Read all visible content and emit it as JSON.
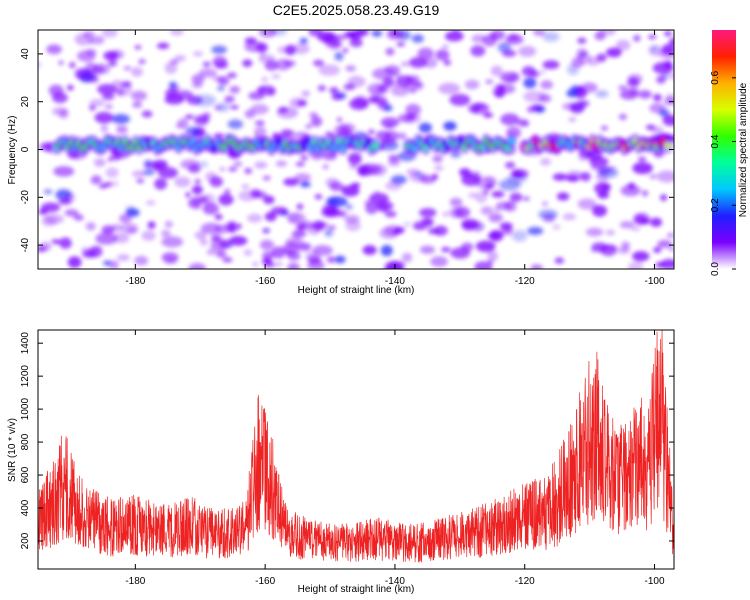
{
  "title": "C2E5.2025.058.23.49.G19",
  "chart_data": [
    {
      "type": "heatmap",
      "xlabel": "Height of straight line (km)",
      "ylabel": "Frequency (Hz)",
      "xlim": [
        -195,
        -97
      ],
      "ylim": [
        -50,
        50
      ],
      "x_ticks": [
        -180,
        -160,
        -140,
        -120,
        -100
      ],
      "y_ticks": [
        -40,
        -20,
        0,
        20,
        40
      ],
      "colorbar": {
        "label": "Normalized spectral amplitude",
        "range": [
          0,
          0.75
        ],
        "ticks": [
          0,
          0.2,
          0.4,
          0.6
        ],
        "tick_labels": [
          "0.0",
          "0.2",
          "0.4",
          "0.6"
        ],
        "colors": [
          "#ffffff",
          "#7b00ff",
          "#1f1fff",
          "#00c8ff",
          "#00ff9a",
          "#30ff00",
          "#d8ff00",
          "#ffb000",
          "#ff2000",
          "#ff1a80"
        ]
      },
      "signal_band": {
        "center_frequency_hz": 2,
        "segments": [
          {
            "x_start": -192,
            "x_end": -143,
            "peak_amplitude": 0.4
          },
          {
            "x_start": -138,
            "x_end": -122,
            "peak_amplitude": 0.45
          },
          {
            "x_start": -120,
            "x_end": -98,
            "peak_amplitude": 0.75
          }
        ]
      }
    },
    {
      "type": "line",
      "xlabel": "Height of straight line (km)",
      "ylabel": "SNR (10 * v/v)",
      "xlim": [
        -195,
        -97
      ],
      "ylim": [
        30,
        1480
      ],
      "x_ticks": [
        -180,
        -160,
        -140,
        -120,
        -100
      ],
      "y_ticks": [
        200,
        400,
        600,
        800,
        1000,
        1200,
        1400
      ],
      "series": [
        {
          "color": "#ee2222",
          "x": [
            -195,
            -193,
            -191,
            -189,
            -187,
            -185,
            -183,
            -181,
            -179,
            -177,
            -175,
            -173,
            -171,
            -169,
            -167,
            -165,
            -163,
            -161,
            -159,
            -157,
            -155,
            -153,
            -151,
            -149,
            -147,
            -145,
            -143,
            -141,
            -139,
            -137,
            -135,
            -133,
            -131,
            -129,
            -127,
            -125,
            -123,
            -121,
            -119,
            -117,
            -115,
            -113,
            -111,
            -109,
            -107,
            -105,
            -103,
            -101,
            -99,
            -97
          ],
          "y": [
            380,
            430,
            600,
            420,
            350,
            320,
            300,
            330,
            310,
            290,
            280,
            300,
            320,
            270,
            260,
            280,
            300,
            750,
            600,
            300,
            250,
            220,
            210,
            200,
            210,
            220,
            230,
            220,
            210,
            200,
            210,
            230,
            240,
            260,
            280,
            300,
            320,
            360,
            380,
            400,
            480,
            620,
            800,
            950,
            650,
            600,
            700,
            750,
            1100,
            250
          ]
        }
      ]
    }
  ]
}
